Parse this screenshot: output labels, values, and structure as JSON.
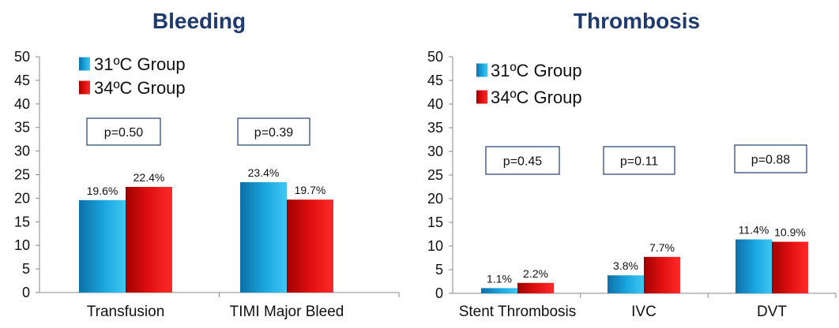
{
  "colors": {
    "series1": "#1aa8e0",
    "series2": "#e01010",
    "title": "#1f3a6e",
    "pbox": "#2e4a80"
  },
  "chart_data": [
    {
      "type": "bar",
      "title": "Bleeding",
      "categories": [
        "Transfusion",
        "TIMI Major Bleed"
      ],
      "series": [
        {
          "name": "31ºC Group",
          "values": [
            19.6,
            23.4
          ],
          "labels": [
            "19.6%",
            "23.4%"
          ]
        },
        {
          "name": "34ºC Group",
          "values": [
            22.4,
            19.7
          ],
          "labels": [
            "22.4%",
            "19.7%"
          ]
        }
      ],
      "pvalues": [
        "p=0.50",
        "p=0.39"
      ],
      "ylim": [
        0,
        50
      ],
      "yticks": [
        0,
        5,
        10,
        15,
        20,
        25,
        30,
        35,
        40,
        45,
        50
      ],
      "legend": "top-left",
      "grid": false
    },
    {
      "type": "bar",
      "title": "Thrombosis",
      "categories": [
        "Stent Thrombosis",
        "IVC",
        "DVT"
      ],
      "series": [
        {
          "name": "31ºC Group",
          "values": [
            1.1,
            3.8,
            11.4
          ],
          "labels": [
            "1.1%",
            "3.8%",
            "11.4%"
          ]
        },
        {
          "name": "34ºC Group",
          "values": [
            2.2,
            7.7,
            10.9
          ],
          "labels": [
            "2.2%",
            "7.7%",
            "10.9%"
          ]
        }
      ],
      "pvalues": [
        "p=0.45",
        "p=0.11",
        "p=0.88"
      ],
      "ylim": [
        0,
        50
      ],
      "yticks": [
        0,
        5,
        10,
        15,
        20,
        25,
        30,
        35,
        40,
        45,
        50
      ],
      "legend": "top-left",
      "grid": false
    }
  ]
}
